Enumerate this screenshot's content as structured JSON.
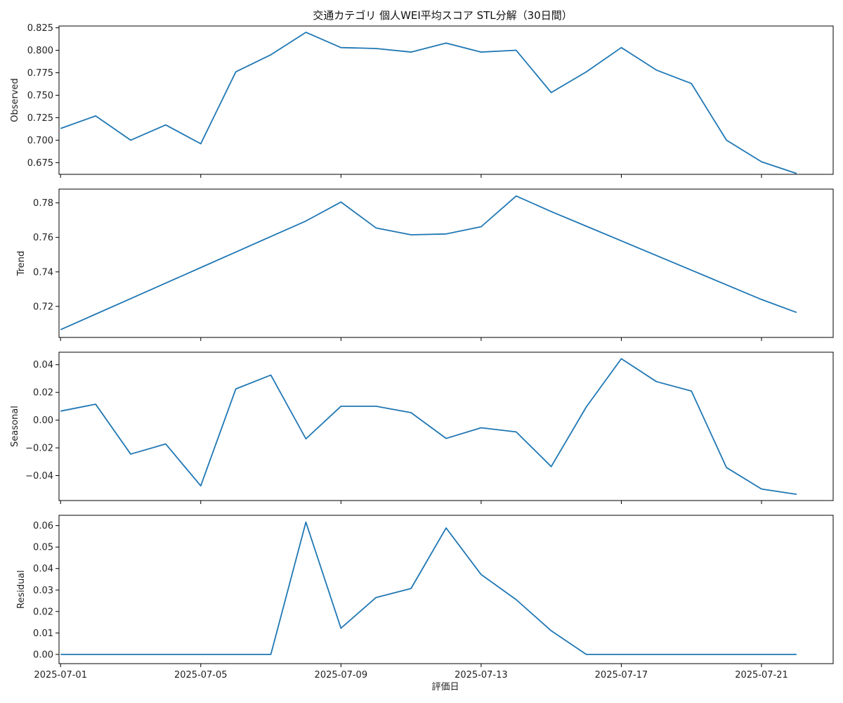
{
  "chart_data": {
    "type": "line",
    "title": "交通カテゴリ 個人WEI平均スコア STL分解（30日間）",
    "xlabel": "評価日",
    "line_color": "#1f77b4",
    "x": [
      "2025-07-01",
      "2025-07-02",
      "2025-07-03",
      "2025-07-04",
      "2025-07-05",
      "2025-07-06",
      "2025-07-07",
      "2025-07-08",
      "2025-07-09",
      "2025-07-10",
      "2025-07-11",
      "2025-07-12",
      "2025-07-13",
      "2025-07-14",
      "2025-07-15",
      "2025-07-16",
      "2025-07-17",
      "2025-07-18",
      "2025-07-19",
      "2025-07-20",
      "2025-07-21",
      "2025-07-22"
    ],
    "x_ticks": [
      "2025-07-01",
      "2025-07-05",
      "2025-07-09",
      "2025-07-13",
      "2025-07-17",
      "2025-07-21"
    ],
    "x_range": [
      "2025-06-30T22:56",
      "2025-07-23T01:04"
    ],
    "panels": [
      {
        "name": "Observed",
        "ylabel": "Observed",
        "ylim": [
          0.662,
          0.827
        ],
        "yticks": [
          "0.675",
          "0.700",
          "0.725",
          "0.750",
          "0.775",
          "0.800",
          "0.825"
        ],
        "values": [
          0.713,
          0.727,
          0.7,
          0.717,
          0.696,
          0.776,
          0.795,
          0.82,
          0.803,
          0.802,
          0.798,
          0.808,
          0.798,
          0.8,
          0.753,
          0.776,
          0.803,
          0.778,
          0.763,
          0.7,
          0.676,
          0.663
        ]
      },
      {
        "name": "Trend",
        "ylabel": "Trend",
        "ylim": [
          0.702,
          0.788
        ],
        "yticks": [
          "0.72",
          "0.74",
          "0.76",
          "0.78"
        ],
        "values": [
          0.7065,
          0.7155,
          0.7245,
          0.7335,
          0.7425,
          0.7515,
          0.7605,
          0.7695,
          0.7805,
          0.7655,
          0.7615,
          0.762,
          0.7662,
          0.784,
          0.775,
          0.7665,
          0.758,
          0.7495,
          0.741,
          0.7325,
          0.724,
          0.7165
        ]
      },
      {
        "name": "Seasonal",
        "ylabel": "Seasonal",
        "ylim": [
          -0.058,
          0.049
        ],
        "yticks": [
          "−0.04",
          "−0.02",
          "0.00",
          "0.02",
          "0.04"
        ],
        "values": [
          0.0065,
          0.0115,
          -0.0245,
          -0.0172,
          -0.0474,
          0.0225,
          0.0325,
          -0.0135,
          0.01,
          0.01,
          0.0054,
          -0.0132,
          -0.0055,
          -0.0085,
          -0.0335,
          0.0095,
          0.0443,
          0.0278,
          0.021,
          -0.0342,
          -0.0497,
          -0.0535
        ]
      },
      {
        "name": "Residual",
        "ylabel": "Residual",
        "ylim": [
          -0.0043,
          0.0648
        ],
        "yticks": [
          "0.00",
          "0.01",
          "0.02",
          "0.03",
          "0.04",
          "0.05",
          "0.06"
        ],
        "values": [
          0,
          0,
          0,
          0,
          0,
          0,
          0,
          0.0616,
          0.0122,
          0.0265,
          0.0307,
          0.0589,
          0.0372,
          0.0255,
          0.011,
          0,
          0,
          0,
          0,
          0,
          0,
          0
        ]
      }
    ]
  }
}
